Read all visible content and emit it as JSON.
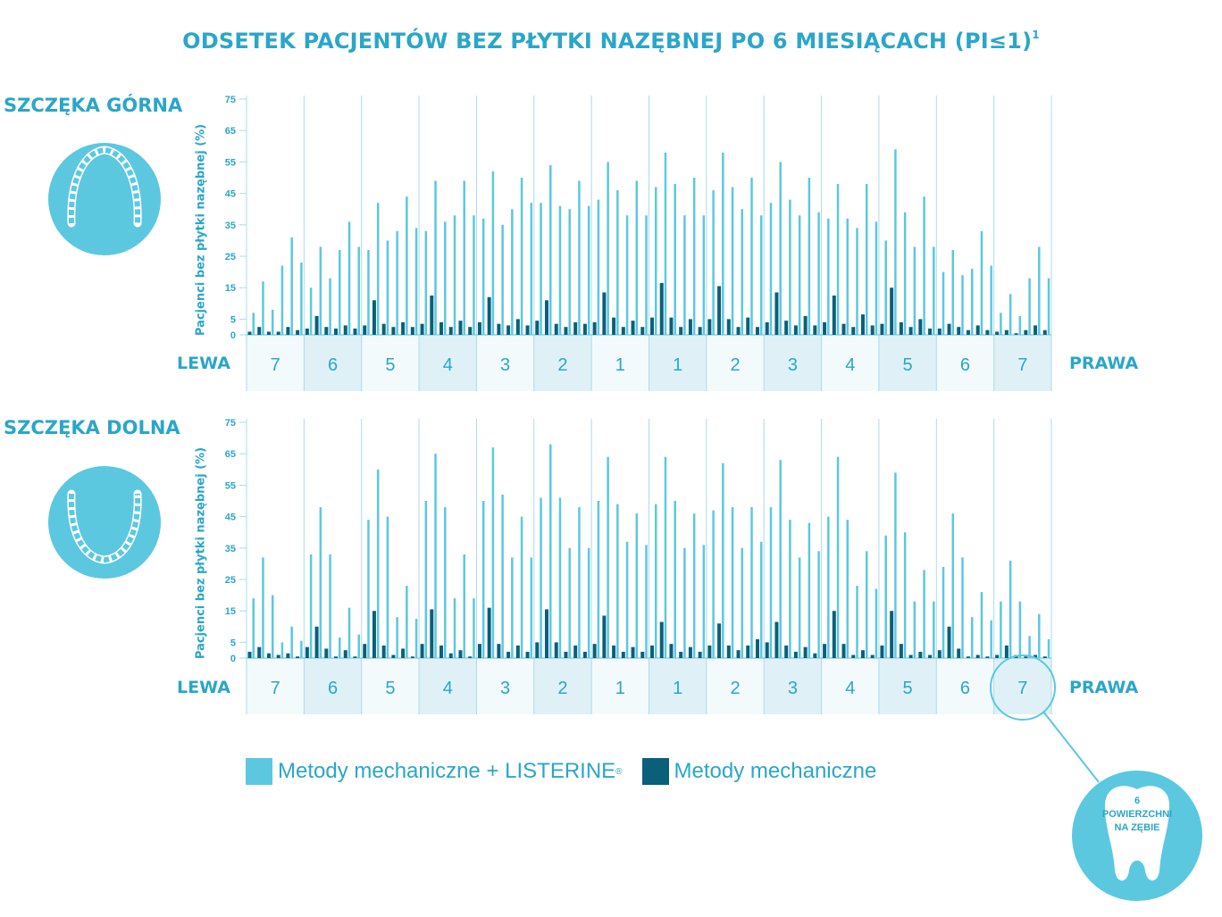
{
  "title": "ODSETEK PACJENTÓW BEZ PŁYTKI NAZĘBNEJ PO 6 MIESIĄCACH (PI≤1)",
  "title_sup": "1",
  "upper_label": "SZCZĘKA GÓRNA",
  "lower_label": "SZCZĘKA DOLNA",
  "left_side": "LEWA",
  "right_side": "PRAWA",
  "ylabel": "Pacjenci bez płytki nazębnej (%)",
  "legend": {
    "series_a": "Metody mechaniczne + LISTERINE",
    "series_a_sup": "®",
    "series_b": "Metody mechaniczne"
  },
  "callout": {
    "line1": "6",
    "line2": "POWIERZCHNI",
    "line3": "NA ZĘBIE"
  },
  "colors": {
    "light": "#5bc8e0",
    "dark": "#0b5f7a",
    "accent": "#2aa6c9",
    "cell_shade": "#dff1f7",
    "cell_plain": "#f3fafc"
  },
  "chart_data": [
    {
      "type": "bar",
      "title": "SZCZĘKA GÓRNA",
      "ylabel": "Pacjenci bez płytki nazębnej (%)",
      "ylim": [
        0,
        75
      ],
      "yticks": [
        0,
        5,
        15,
        25,
        35,
        45,
        55,
        65,
        75
      ],
      "categories": [
        "7",
        "6",
        "5",
        "4",
        "3",
        "2",
        "1",
        "1",
        "2",
        "3",
        "4",
        "5",
        "6",
        "7"
      ],
      "surfaces_per_tooth": 6,
      "series": [
        {
          "name": "Metody mechaniczne + LISTERINE",
          "values": [
            [
              7,
              17,
              8,
              22,
              31,
              23
            ],
            [
              15,
              28,
              18,
              27,
              36,
              28
            ],
            [
              27,
              42,
              30,
              33,
              44,
              34
            ],
            [
              33,
              49,
              36,
              38,
              49,
              38
            ],
            [
              37,
              52,
              35,
              40,
              50,
              42
            ],
            [
              42,
              54,
              41,
              40,
              49,
              41
            ],
            [
              43,
              55,
              46,
              38,
              49,
              38
            ],
            [
              47,
              58,
              48,
              38,
              50,
              38
            ],
            [
              46,
              58,
              47,
              40,
              50,
              38
            ],
            [
              42,
              55,
              43,
              38,
              50,
              39
            ],
            [
              37,
              48,
              37,
              34,
              48,
              36
            ],
            [
              30,
              59,
              39,
              28,
              44,
              28
            ],
            [
              20,
              27,
              19,
              21,
              33,
              22
            ],
            [
              7,
              13,
              6,
              18,
              28,
              18
            ]
          ]
        },
        {
          "name": "Metody mechaniczne",
          "values": [
            [
              1,
              2.5,
              1,
              1,
              2.5,
              1.5
            ],
            [
              2,
              6,
              2.5,
              2,
              3,
              2
            ],
            [
              3,
              11,
              3.5,
              2.5,
              4,
              2.5
            ],
            [
              3.5,
              12.5,
              4,
              2.5,
              4.5,
              2.5
            ],
            [
              4,
              12,
              3.5,
              3,
              5,
              3
            ],
            [
              4.5,
              11,
              3.5,
              2.5,
              4,
              3.5
            ],
            [
              4,
              13.5,
              5.5,
              2.5,
              4.5,
              2.5
            ],
            [
              5.5,
              16.5,
              5.5,
              2.5,
              5,
              2.5
            ],
            [
              5,
              15.5,
              5,
              2.5,
              5.5,
              2.5
            ],
            [
              4,
              13.5,
              4.5,
              3,
              6,
              3
            ],
            [
              4,
              12.5,
              3.5,
              2.5,
              6.5,
              3
            ],
            [
              3.5,
              15,
              4,
              2.5,
              5,
              2
            ],
            [
              2,
              3.5,
              2.5,
              1.5,
              3,
              1.5
            ],
            [
              1,
              1.5,
              0.5,
              1.5,
              3,
              1.5
            ]
          ]
        }
      ]
    },
    {
      "type": "bar",
      "title": "SZCZĘKA DOLNA",
      "ylabel": "Pacjenci bez płytki nazębnej (%)",
      "ylim": [
        0,
        75
      ],
      "yticks": [
        0,
        5,
        15,
        25,
        35,
        45,
        55,
        65,
        75
      ],
      "categories": [
        "7",
        "6",
        "5",
        "4",
        "3",
        "2",
        "1",
        "1",
        "2",
        "3",
        "4",
        "5",
        "6",
        "7"
      ],
      "surfaces_per_tooth": 6,
      "series": [
        {
          "name": "Metody mechaniczne + LISTERINE",
          "values": [
            [
              19,
              32,
              20,
              5,
              10,
              5.5
            ],
            [
              33,
              48,
              33,
              6.5,
              16,
              7.5
            ],
            [
              44,
              60,
              45,
              13,
              23,
              12.5
            ],
            [
              50,
              65,
              48,
              19,
              33,
              19
            ],
            [
              50,
              67,
              52,
              32,
              45,
              32
            ],
            [
              51,
              68,
              51,
              35,
              48,
              35
            ],
            [
              50,
              64,
              49,
              37,
              46,
              36
            ],
            [
              49,
              64,
              50,
              35,
              46,
              36
            ],
            [
              47,
              62,
              48,
              35,
              48,
              37
            ],
            [
              48,
              63,
              44,
              32,
              43,
              34
            ],
            [
              45,
              64,
              44,
              23,
              34,
              22
            ],
            [
              39,
              59,
              40,
              18,
              28,
              18
            ],
            [
              29,
              46,
              32,
              13,
              21,
              12
            ],
            [
              18,
              31,
              18,
              7,
              14,
              6
            ]
          ]
        },
        {
          "name": "Metody mechaniczne",
          "values": [
            [
              2,
              3.5,
              1.5,
              1,
              1.5,
              0.5
            ],
            [
              3.5,
              10,
              3,
              0.5,
              2.5,
              0.5
            ],
            [
              4.5,
              15,
              4,
              1,
              3,
              0.5
            ],
            [
              4.5,
              15.5,
              4,
              1.5,
              2.5,
              0.5
            ],
            [
              4.5,
              16,
              4.5,
              2,
              4,
              2
            ],
            [
              5,
              15.5,
              5,
              2,
              4,
              2
            ],
            [
              4.5,
              13.5,
              4,
              2,
              3.5,
              2
            ],
            [
              4,
              11.5,
              4.5,
              2,
              3.5,
              2
            ],
            [
              4,
              11,
              4,
              2.5,
              4,
              6
            ],
            [
              5,
              11.5,
              4,
              2,
              3.5,
              1.5
            ],
            [
              4.5,
              15,
              4.5,
              1,
              2.5,
              1
            ],
            [
              4,
              15,
              4.5,
              1,
              2,
              1
            ],
            [
              2.5,
              10,
              3,
              0.5,
              1,
              0.5
            ],
            [
              1,
              4,
              1,
              0.5,
              1,
              0.5
            ]
          ]
        }
      ]
    }
  ]
}
